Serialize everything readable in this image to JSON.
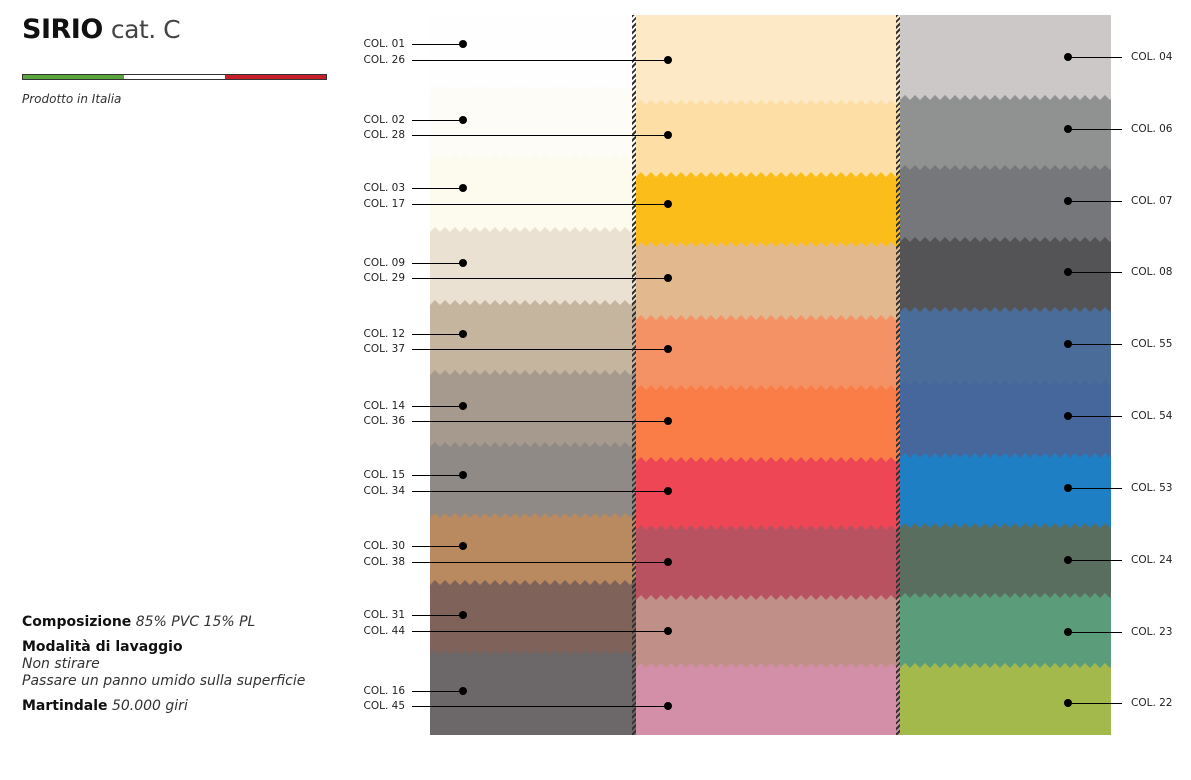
{
  "header": {
    "title_bold": "SIRIO",
    "title_light": "cat. C",
    "made_in": "Prodotto in Italia"
  },
  "flag_colors": [
    "#5aa63c",
    "#ffffff",
    "#c8202a"
  ],
  "specs": {
    "composition_label": "Composizione",
    "composition_value": "85% PVC 15% PL",
    "washing_label": "Modalità di lavaggio",
    "washing_line1": "Non stirare",
    "washing_line2": "Passare un panno umido sulla superficie",
    "martindale_label": "Martindale",
    "martindale_value": "50.000 giri"
  },
  "swatches": {
    "left": [
      {
        "label": "COL. 01",
        "color": "#fefefe"
      },
      {
        "label": "COL. 02",
        "color": "#fdfcf7"
      },
      {
        "label": "COL. 03",
        "color": "#fdfbee"
      },
      {
        "label": "COL. 09",
        "color": "#ebe1d2"
      },
      {
        "label": "COL. 12",
        "color": "#c5b49e"
      },
      {
        "label": "COL. 14",
        "color": "#a59a8d"
      },
      {
        "label": "COL. 15",
        "color": "#8f8a86"
      },
      {
        "label": "COL. 30",
        "color": "#b98a60"
      },
      {
        "label": "COL. 31",
        "color": "#7f6259"
      },
      {
        "label": "COL. 16",
        "color": "#6c6769"
      }
    ],
    "middle": [
      {
        "label": "COL. 26",
        "color": "#fde9c5"
      },
      {
        "label": "COL. 28",
        "color": "#fddea4"
      },
      {
        "label": "COL. 17",
        "color": "#fbbd1a"
      },
      {
        "label": "COL. 29",
        "color": "#e2b98f"
      },
      {
        "label": "COL. 37",
        "color": "#f49266"
      },
      {
        "label": "COL. 36",
        "color": "#fa7d48"
      },
      {
        "label": "COL. 34",
        "color": "#ef4655"
      },
      {
        "label": "COL. 38",
        "color": "#b85260"
      },
      {
        "label": "COL. 44",
        "color": "#c09088"
      },
      {
        "label": "COL. 45",
        "color": "#d48fa8"
      }
    ],
    "right": [
      {
        "label": "COL. 04",
        "color": "#cdc8c8"
      },
      {
        "label": "COL. 06",
        "color": "#909191"
      },
      {
        "label": "COL. 07",
        "color": "#76777b"
      },
      {
        "label": "COL. 08",
        "color": "#545456"
      },
      {
        "label": "COL. 55",
        "color": "#4a6c98"
      },
      {
        "label": "COL. 54",
        "color": "#46679b"
      },
      {
        "label": "COL. 53",
        "color": "#1f7fc4"
      },
      {
        "label": "COL. 24",
        "color": "#5a6e5f"
      },
      {
        "label": "COL. 23",
        "color": "#5b9c7a"
      },
      {
        "label": "COL. 22",
        "color": "#a4b94c"
      }
    ]
  }
}
